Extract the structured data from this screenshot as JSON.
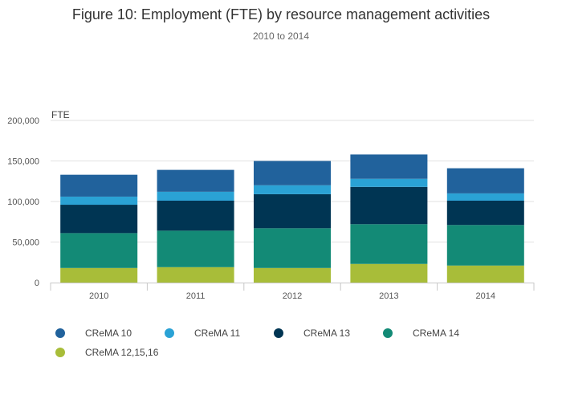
{
  "chart_data": {
    "type": "bar",
    "stacked": true,
    "title": "Figure 10: Employment (FTE) by resource management activities",
    "subtitle": "2010 to 2014",
    "ylabel": "FTE",
    "xlabel": "",
    "ylim": [
      0,
      200000
    ],
    "yticks": [
      0,
      50000,
      100000,
      150000,
      200000
    ],
    "ytick_labels": [
      "0",
      "50,000",
      "100,000",
      "150,000",
      "200,000"
    ],
    "categories": [
      "2010",
      "2011",
      "2012",
      "2013",
      "2014"
    ],
    "grid": true,
    "legend_position": "bottom",
    "series": [
      {
        "name": "CReMA 12,15,16",
        "color": "#a8bd39",
        "values": [
          18000,
          19000,
          18000,
          23000,
          21000
        ]
      },
      {
        "name": "CReMA 14",
        "color": "#138a76",
        "values": [
          43000,
          45000,
          49000,
          49000,
          50000
        ]
      },
      {
        "name": "CReMA 13",
        "color": "#003553",
        "values": [
          35000,
          37000,
          42000,
          46000,
          30000
        ]
      },
      {
        "name": "CReMA 11",
        "color": "#2aa2d5",
        "values": [
          10000,
          11000,
          11000,
          10000,
          9000
        ]
      },
      {
        "name": "CReMA 10",
        "color": "#21629c",
        "values": [
          27000,
          27000,
          30000,
          30000,
          31000
        ]
      }
    ],
    "legend_order": [
      "CReMA 10",
      "CReMA 11",
      "CReMA 13",
      "CReMA 14",
      "CReMA 12,15,16"
    ]
  }
}
